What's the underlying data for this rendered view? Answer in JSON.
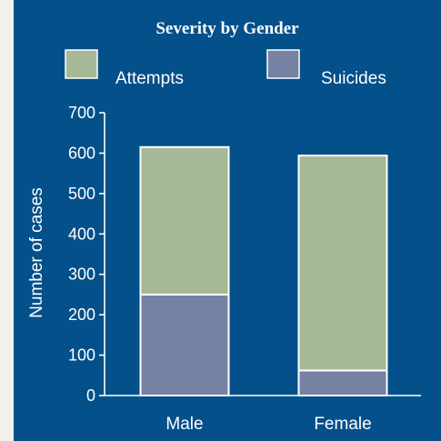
{
  "chart_data": {
    "type": "bar",
    "stacked": true,
    "title": "Severity by Gender",
    "xlabel": "",
    "ylabel": "Number of cases",
    "categories": [
      "Male",
      "Female"
    ],
    "series": [
      {
        "name": "Suicides",
        "values": [
          250,
          62
        ],
        "color": "#7682a3"
      },
      {
        "name": "Attempts",
        "values": [
          365,
          532
        ],
        "color": "#a6b895"
      }
    ],
    "legend_order": [
      "Attempts",
      "Suicides"
    ],
    "ylim": [
      0,
      700
    ],
    "yticks": [
      0,
      100,
      200,
      300,
      400,
      500,
      600,
      700
    ],
    "legend_position": "top",
    "grid": false
  },
  "colors": {
    "panel_background": "#04508a",
    "page_background": "#f0f1ea",
    "text": "#ffffff"
  }
}
